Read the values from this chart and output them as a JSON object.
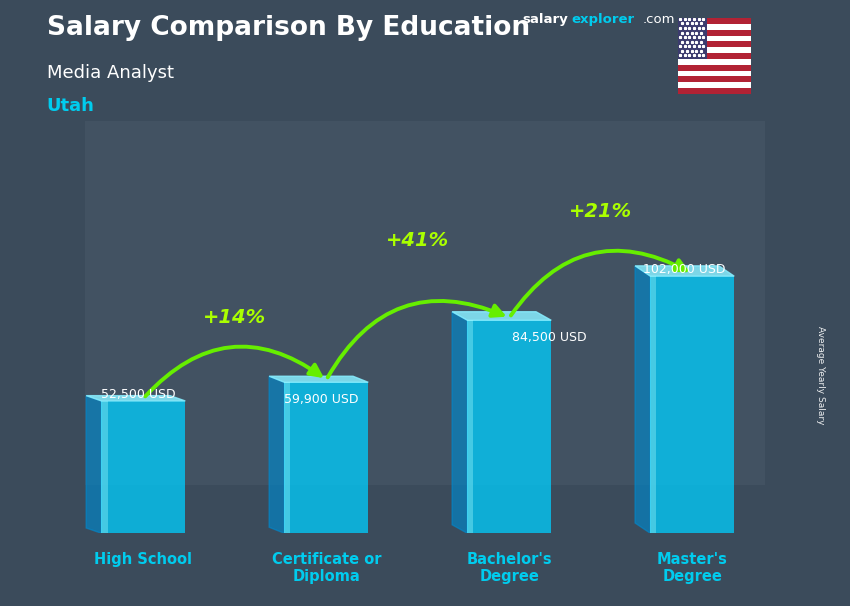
{
  "title_line1": "Salary Comparison By Education",
  "subtitle": "Media Analyst",
  "location": "Utah",
  "categories": [
    "High School",
    "Certificate or\nDiploma",
    "Bachelor's\nDegree",
    "Master's\nDegree"
  ],
  "values": [
    52500,
    59900,
    84500,
    102000
  ],
  "value_labels": [
    "52,500 USD",
    "59,900 USD",
    "84,500 USD",
    "102,000 USD"
  ],
  "pct_changes": [
    "+14%",
    "+41%",
    "+21%"
  ],
  "bar_color_face": "#00cfff",
  "bar_color_left": "#0088cc",
  "bar_color_top": "#88eeff",
  "bg_color": "#3a4a5a",
  "text_color_white": "#ffffff",
  "text_color_cyan": "#00ccee",
  "text_color_green": "#aaff00",
  "arrow_color": "#66ee00",
  "ylabel": "Average Yearly Salary",
  "ylim": [
    0,
    125000
  ],
  "bar_width": 0.55,
  "x_positions": [
    0.55,
    1.75,
    2.95,
    4.15
  ],
  "x_lim": [
    0.0,
    4.85
  ],
  "fig_width": 8.5,
  "fig_height": 6.06,
  "watermark_salary": "salary",
  "watermark_explorer": "explorer",
  "watermark_com": ".com"
}
